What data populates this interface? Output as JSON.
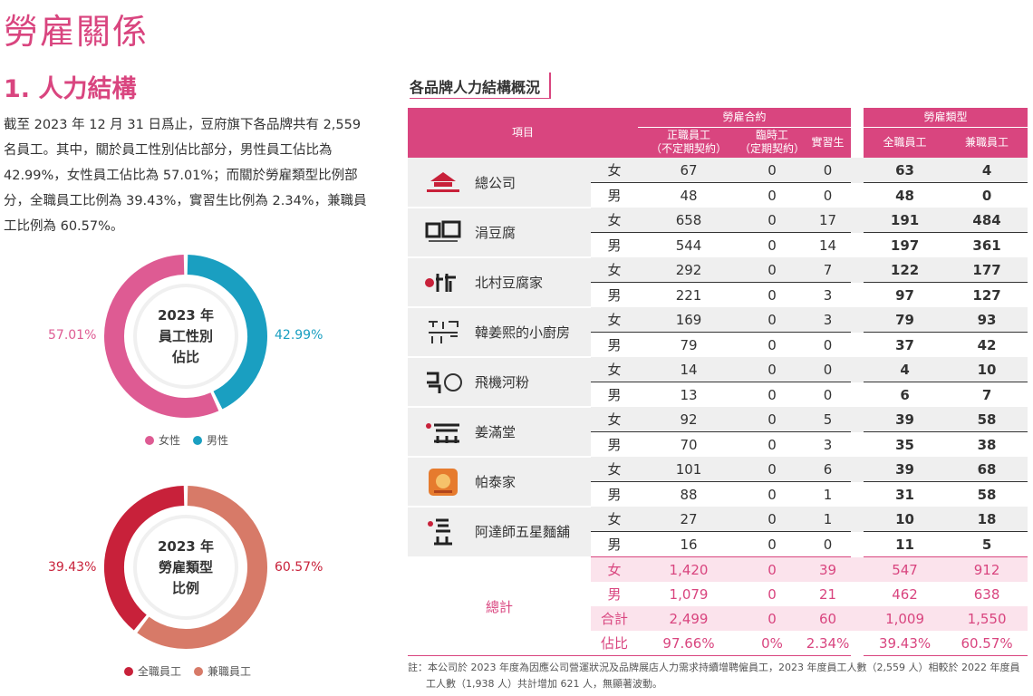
{
  "page_title": "勞雇關係",
  "section_title": "1. 人力結構",
  "intro": "截至 2023 年 12 月 31 日爲止，豆府旗下各品牌共有 2,559 名員工。其中，關於員工性別佔比部分，男性員工佔比為 42.99%，女性員工佔比為 57.01%；而關於勞雇類型比例部分，全職員工比例為 39.43%，實習生比例為 2.34%，兼職員工比例為 60.57%。",
  "gender_chart": {
    "center_text": "2023 年\n員工性別\n佔比",
    "female_pct": "57.01%",
    "male_pct": "42.99%",
    "female_value": 57.01,
    "male_value": 42.99,
    "female_color": "#de5b93",
    "male_color": "#1a9fc1",
    "legend_female": "女性",
    "legend_male": "男性"
  },
  "type_chart": {
    "center_text": "2023 年\n勞雇類型\n比例",
    "fulltime_pct": "39.43%",
    "parttime_pct": "60.57%",
    "fulltime_value": 39.43,
    "parttime_value": 60.57,
    "fulltime_color": "#c8213a",
    "parttime_color": "#d77a68",
    "legend_fulltime": "全職員工",
    "legend_parttime": "兼職員工"
  },
  "table": {
    "title": "各品牌人力結構概況",
    "header": {
      "item": "項目",
      "contract_group": "勞雇合約",
      "type_group": "勞雇類型",
      "regular": "正職員工\n（不定期契約）",
      "temporary": "臨時工\n（定期契約）",
      "intern": "實習生",
      "fulltime": "全職員工",
      "parttime": "兼職員工"
    },
    "brands": [
      {
        "name": "總公司",
        "logo": "dofu-group-logo",
        "female": [
          "67",
          "0",
          "0",
          "63",
          "4"
        ],
        "male": [
          "48",
          "0",
          "0",
          "48",
          "0"
        ]
      },
      {
        "name": "涓豆腐",
        "logo": "sundubu-logo",
        "female": [
          "658",
          "0",
          "17",
          "191",
          "484"
        ],
        "male": [
          "544",
          "0",
          "14",
          "197",
          "361"
        ]
      },
      {
        "name": "北村豆腐家",
        "logo": "bukchon-logo",
        "female": [
          "292",
          "0",
          "7",
          "122",
          "177"
        ],
        "male": [
          "221",
          "0",
          "3",
          "97",
          "127"
        ]
      },
      {
        "name": "韓姜熙的小廚房",
        "logo": "hankanghee-logo",
        "female": [
          "169",
          "0",
          "3",
          "79",
          "93"
        ],
        "male": [
          "79",
          "0",
          "0",
          "37",
          "42"
        ]
      },
      {
        "name": "飛機河粉",
        "logo": "pho-logo",
        "female": [
          "14",
          "0",
          "0",
          "4",
          "10"
        ],
        "male": [
          "13",
          "0",
          "0",
          "6",
          "7"
        ]
      },
      {
        "name": "姜滿堂",
        "logo": "jiangmantang-logo",
        "female": [
          "92",
          "0",
          "5",
          "39",
          "58"
        ],
        "male": [
          "70",
          "0",
          "3",
          "35",
          "38"
        ]
      },
      {
        "name": "帕泰家",
        "logo": "pataijia-logo",
        "female": [
          "101",
          "0",
          "6",
          "39",
          "68"
        ],
        "male": [
          "88",
          "0",
          "1",
          "31",
          "58"
        ]
      },
      {
        "name": "阿達師五星麵舖",
        "logo": "wuxing-noodle-logo",
        "female": [
          "27",
          "0",
          "1",
          "10",
          "18"
        ],
        "male": [
          "16",
          "0",
          "0",
          "11",
          "5"
        ]
      }
    ],
    "female_label": "女",
    "male_label": "男",
    "total_label": "總計",
    "totals": [
      {
        "label": "女",
        "values": [
          "1,420",
          "0",
          "39",
          "547",
          "912"
        ]
      },
      {
        "label": "男",
        "values": [
          "1,079",
          "0",
          "21",
          "462",
          "638"
        ]
      },
      {
        "label": "合計",
        "values": [
          "2,499",
          "0",
          "60",
          "1,009",
          "1,550"
        ]
      },
      {
        "label": "佔比",
        "values": [
          "97.66%",
          "0%",
          "2.34%",
          "39.43%",
          "60.57%"
        ]
      }
    ]
  },
  "note": "註：本公司於 2023 年度為因應公司營運狀況及品牌展店人力需求持續增聘僱員工，2023 年度員工人數（2,559 人）相較於 2022 年度員工人數（1,938 人）共計增加 621 人，無顯著波動。"
}
